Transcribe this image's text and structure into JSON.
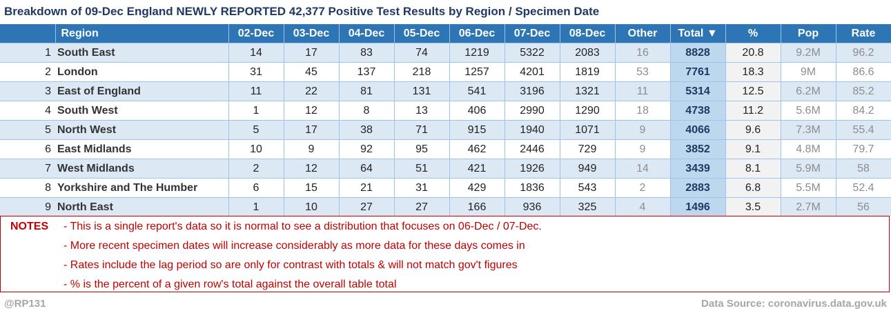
{
  "chart_data": {
    "type": "table",
    "title": "Breakdown of 09-Dec England NEWLY REPORTED 42,377 Positive Test Results by Region / Specimen Date",
    "columns": [
      "Region",
      "02-Dec",
      "03-Dec",
      "04-Dec",
      "05-Dec",
      "06-Dec",
      "07-Dec",
      "08-Dec",
      "Other",
      "Total ▼",
      "%",
      "Pop",
      "Rate"
    ],
    "rows": [
      {
        "rank": "1",
        "region": "South East",
        "values": [
          "14",
          "17",
          "83",
          "74",
          "1219",
          "5322",
          "2083"
        ],
        "other": "16",
        "total": "8828",
        "pct": "20.8",
        "pop": "9.2M",
        "rate": "96.2"
      },
      {
        "rank": "2",
        "region": "London",
        "values": [
          "31",
          "45",
          "137",
          "218",
          "1257",
          "4201",
          "1819"
        ],
        "other": "53",
        "total": "7761",
        "pct": "18.3",
        "pop": "9M",
        "rate": "86.6"
      },
      {
        "rank": "3",
        "region": "East of England",
        "values": [
          "11",
          "22",
          "81",
          "131",
          "541",
          "3196",
          "1321"
        ],
        "other": "11",
        "total": "5314",
        "pct": "12.5",
        "pop": "6.2M",
        "rate": "85.2"
      },
      {
        "rank": "4",
        "region": "South West",
        "values": [
          "1",
          "12",
          "8",
          "13",
          "406",
          "2990",
          "1290"
        ],
        "other": "18",
        "total": "4738",
        "pct": "11.2",
        "pop": "5.6M",
        "rate": "84.2"
      },
      {
        "rank": "5",
        "region": "North West",
        "values": [
          "5",
          "17",
          "38",
          "71",
          "915",
          "1940",
          "1071"
        ],
        "other": "9",
        "total": "4066",
        "pct": "9.6",
        "pop": "7.3M",
        "rate": "55.4"
      },
      {
        "rank": "6",
        "region": "East Midlands",
        "values": [
          "10",
          "9",
          "92",
          "95",
          "462",
          "2446",
          "729"
        ],
        "other": "9",
        "total": "3852",
        "pct": "9.1",
        "pop": "4.8M",
        "rate": "79.7"
      },
      {
        "rank": "7",
        "region": "West Midlands",
        "values": [
          "2",
          "12",
          "64",
          "51",
          "421",
          "1926",
          "949"
        ],
        "other": "14",
        "total": "3439",
        "pct": "8.1",
        "pop": "5.9M",
        "rate": "58"
      },
      {
        "rank": "8",
        "region": "Yorkshire and The Humber",
        "values": [
          "6",
          "15",
          "21",
          "31",
          "429",
          "1836",
          "543"
        ],
        "other": "2",
        "total": "2883",
        "pct": "6.8",
        "pop": "5.5M",
        "rate": "52.4"
      },
      {
        "rank": "9",
        "region": "North East",
        "values": [
          "1",
          "10",
          "27",
          "27",
          "166",
          "936",
          "325"
        ],
        "other": "4",
        "total": "1496",
        "pct": "3.5",
        "pop": "2.7M",
        "rate": "56"
      }
    ]
  },
  "notes": {
    "label": "NOTES",
    "lines": [
      "- This is a single report's data so it is normal to see a distribution that focuses on 06-Dec / 07-Dec.",
      "- More recent specimen dates will increase considerably as more data for these days comes in",
      "- Rates include the lag period so are only for contrast with totals & will not match gov't figures",
      "- % is the percent of a given row's total against the overall table total"
    ]
  },
  "footer": {
    "handle": "@RP131",
    "source": "Data Source: coronavirus.data.gov.uk"
  },
  "colors": {
    "header_bg": "#2e75b6",
    "title": "#1f3864",
    "band": "#dde8f5",
    "total_bg": "#bdd7ee",
    "notes": "#c00000"
  }
}
